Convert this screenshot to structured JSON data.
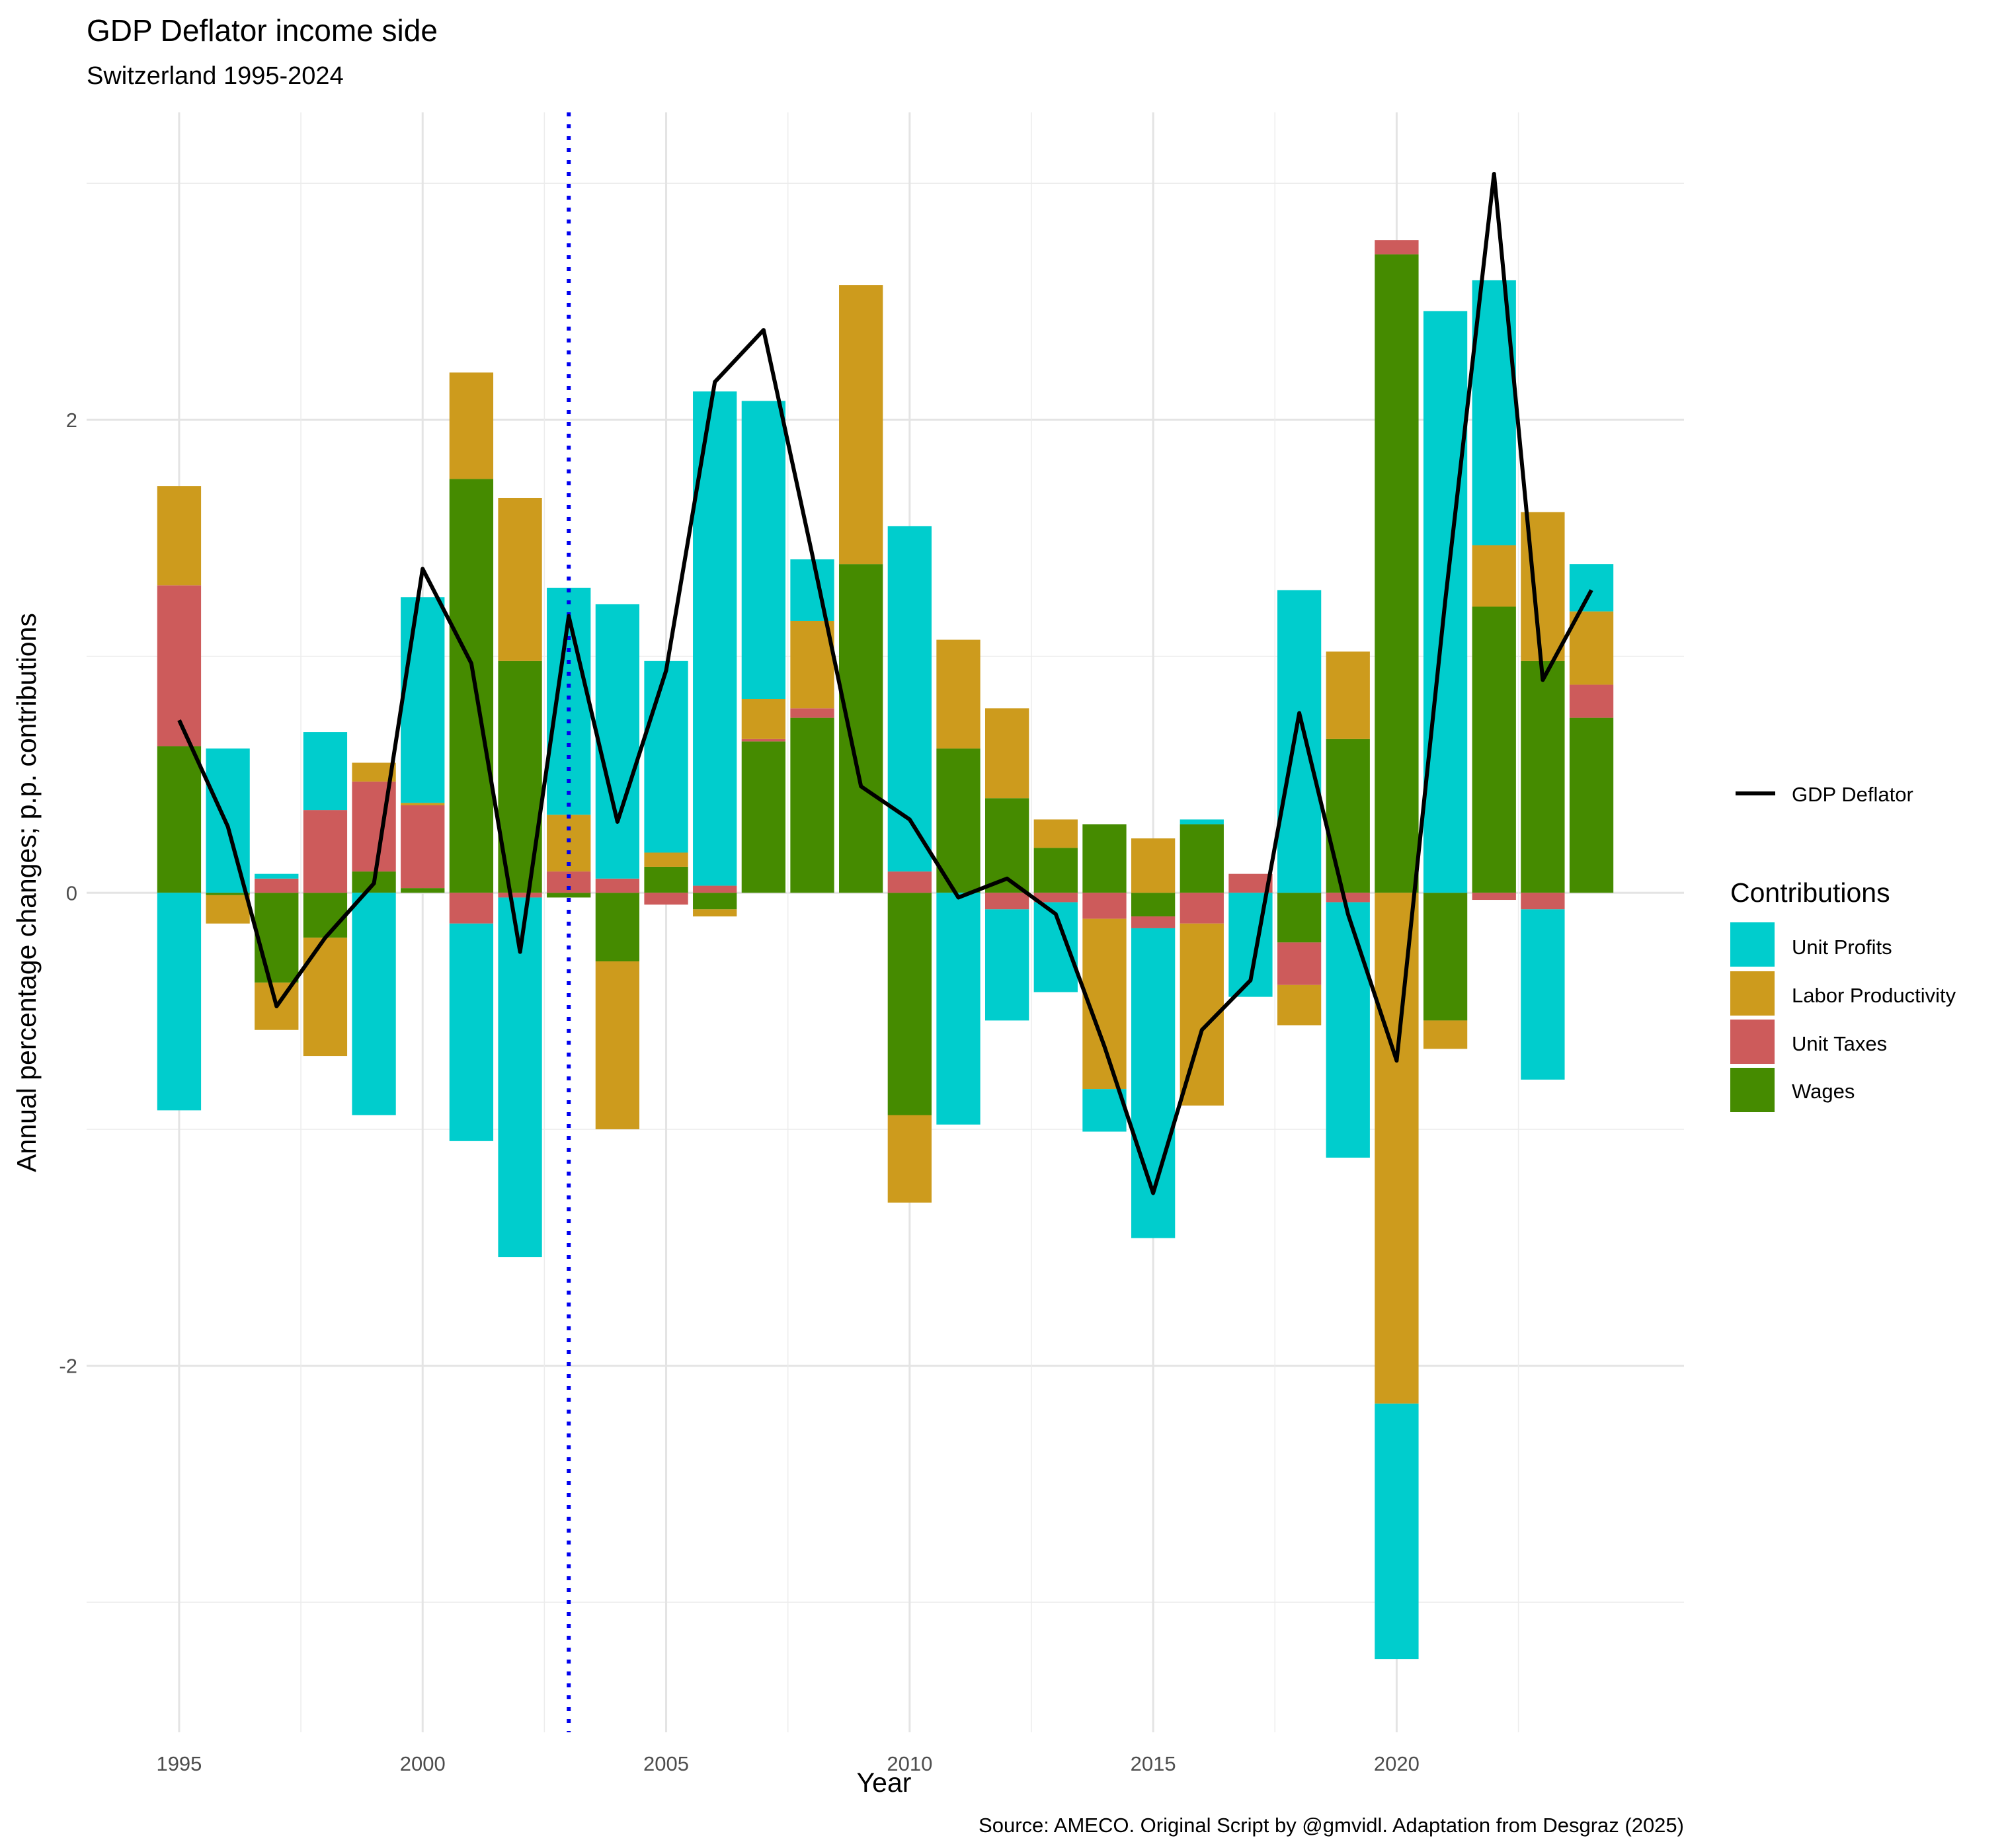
{
  "chart_data": {
    "type": "bar",
    "title": "GDP Deflator income side",
    "subtitle": "Switzerland 1995-2024",
    "xlabel": "Year",
    "ylabel": "Annual percentage changes; p.p. contributions",
    "caption": "Source: AMECO. Original Script by @gmvidl. Adaptation from Desgraz (2025)",
    "stacked": true,
    "grid": true,
    "legend_position": "right",
    "xlim": [
      1993.1,
      2025.9
    ],
    "ylim": [
      -3.55,
      3.3
    ],
    "x_ticks": [
      1995,
      2000,
      2005,
      2010,
      2015,
      2020
    ],
    "x_tick_labels": [
      "1995",
      "2000",
      "2005",
      "2010",
      "2015",
      "2020"
    ],
    "y_ticks": [
      -2,
      0,
      2
    ],
    "y_tick_labels": [
      "-2",
      "0",
      "2"
    ],
    "vline": {
      "x": 2003,
      "color": "#0000ee",
      "style": "dotted"
    },
    "categories": [
      1995,
      1996,
      1997,
      1998,
      1999,
      2000,
      2001,
      2002,
      2003,
      2004,
      2005,
      2006,
      2007,
      2008,
      2009,
      2010,
      2011,
      2012,
      2013,
      2014,
      2015,
      2016,
      2017,
      2018,
      2019,
      2020,
      2021,
      2022,
      2023,
      2024
    ],
    "series": [
      {
        "name": "Wages",
        "color": "#458b00",
        "values": [
          0.62,
          -0.01,
          -0.38,
          -0.19,
          0.09,
          0.02,
          1.75,
          0.98,
          -0.02,
          -0.29,
          0.11,
          -0.07,
          0.64,
          0.74,
          1.39,
          -0.94,
          0.61,
          0.4,
          0.19,
          0.29,
          -0.1,
          0.29,
          0.0,
          -0.21,
          0.65,
          2.7,
          -0.54,
          1.21,
          0.98,
          0.74
        ]
      },
      {
        "name": "Unit Taxes",
        "color": "#cd5b5b",
        "values": [
          0.68,
          0.0,
          0.06,
          0.35,
          0.38,
          0.35,
          -0.13,
          -0.02,
          0.09,
          0.06,
          -0.05,
          0.03,
          0.01,
          0.04,
          0.0,
          0.09,
          0.0,
          -0.07,
          -0.04,
          -0.11,
          -0.05,
          -0.13,
          0.08,
          -0.18,
          -0.04,
          0.06,
          0.0,
          -0.03,
          -0.07,
          0.14
        ]
      },
      {
        "name": "Labor Productivity",
        "color": "#cd9b1d",
        "values": [
          0.42,
          -0.12,
          -0.2,
          -0.5,
          0.08,
          0.01,
          0.45,
          0.69,
          0.24,
          -0.71,
          0.06,
          -0.03,
          0.17,
          0.37,
          1.18,
          -0.37,
          0.46,
          0.38,
          0.12,
          -0.72,
          0.23,
          -0.77,
          0.0,
          -0.17,
          0.37,
          -2.16,
          -0.12,
          0.26,
          0.63,
          0.31
        ]
      },
      {
        "name": "Unit Profits",
        "color": "#00cdcd",
        "values": [
          -0.92,
          0.61,
          0.02,
          0.33,
          -0.94,
          0.87,
          -0.92,
          -1.52,
          0.96,
          1.16,
          0.81,
          2.09,
          1.26,
          0.26,
          0.0,
          1.46,
          -0.98,
          -0.47,
          -0.38,
          -0.18,
          -1.31,
          0.02,
          -0.44,
          1.28,
          -1.08,
          -1.08,
          2.46,
          1.12,
          -0.72,
          0.2
        ]
      }
    ],
    "line": {
      "name": "GDP Deflator",
      "color": "#000000",
      "values": [
        0.73,
        0.28,
        -0.48,
        -0.19,
        0.04,
        1.37,
        0.97,
        -0.25,
        1.17,
        0.3,
        0.94,
        2.16,
        2.38,
        1.43,
        0.45,
        0.31,
        -0.02,
        0.06,
        -0.09,
        -0.65,
        -1.27,
        -0.58,
        -0.37,
        0.76,
        -0.09,
        -0.71,
        1.24,
        3.04,
        0.9,
        1.28
      ]
    }
  },
  "legend": {
    "line_label": "GDP Deflator",
    "title": "Contributions",
    "items": [
      {
        "label": "Unit Profits",
        "color": "#00cdcd"
      },
      {
        "label": "Labor Productivity",
        "color": "#cd9b1d"
      },
      {
        "label": "Unit Taxes",
        "color": "#cd5b5b"
      },
      {
        "label": "Wages",
        "color": "#458b00"
      }
    ]
  }
}
